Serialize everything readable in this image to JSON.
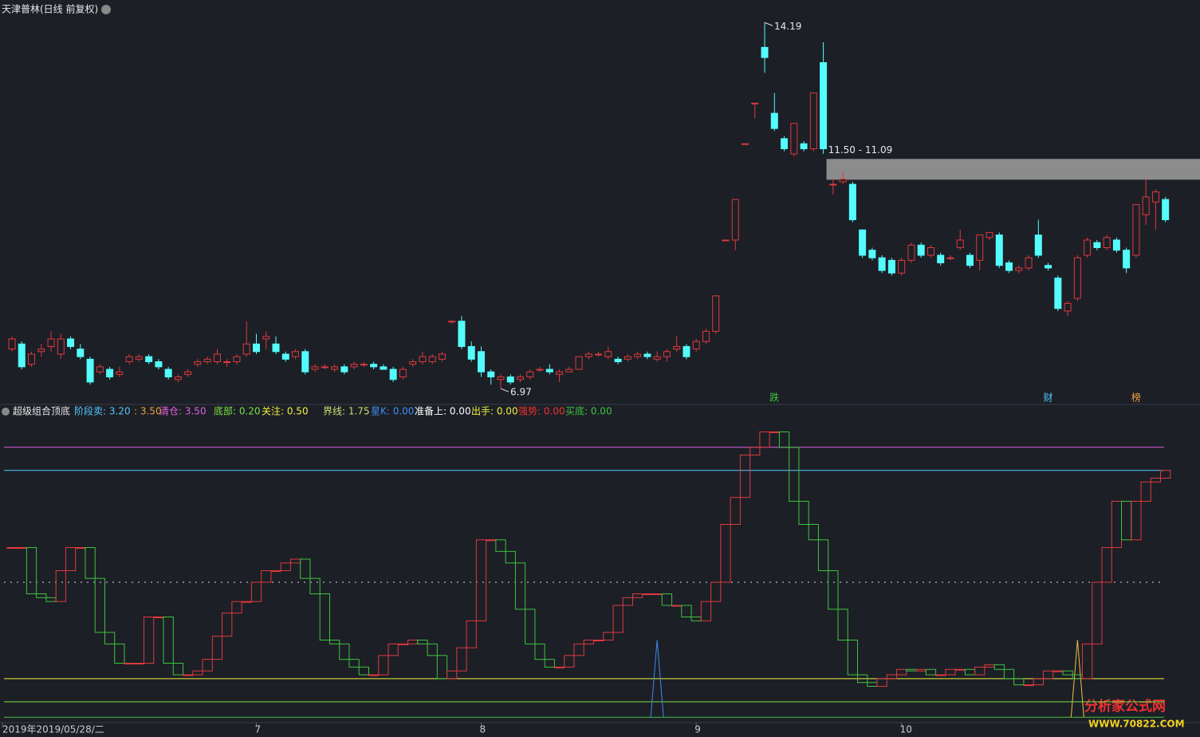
{
  "chart_data": [
    {
      "type": "candlestick",
      "title": "天津普林(日线 前复权)",
      "up_color": "#e0393e",
      "down_color": "#54fcfc",
      "ylim": [
        6.69,
        14.32
      ],
      "open": [
        7.75,
        7.85,
        7.45,
        7.7,
        7.8,
        7.65,
        7.95,
        7.75,
        7.55,
        7.3,
        7.35,
        7.25,
        7.5,
        7.55,
        7.6,
        7.5,
        7.35,
        7.15,
        7.25,
        7.45,
        7.5,
        7.5,
        7.5,
        7.5,
        7.65,
        7.85,
        7.95,
        7.85,
        7.65,
        7.6,
        7.7,
        7.35,
        7.4,
        7.35,
        7.4,
        7.4,
        7.45,
        7.45,
        7.4,
        7.35,
        7.2,
        7.45,
        7.5,
        7.5,
        7.55,
        8.3,
        8.3,
        7.8,
        7.7,
        7.3,
        7.15,
        7.2,
        7.15,
        7.2,
        7.35,
        7.35,
        7.25,
        7.3,
        7.35,
        7.6,
        7.65,
        7.6,
        7.55,
        7.55,
        7.6,
        7.65,
        7.55,
        7.6,
        7.75,
        7.8,
        7.75,
        7.9,
        8.1,
        9.9,
        9.9,
        11.8,
        12.6,
        13.7,
        12.4,
        11.9,
        11.6,
        11.8,
        11.7,
        13.4,
        11.0,
        11.05,
        11.0,
        10.1,
        9.7,
        9.55,
        9.5,
        9.25,
        9.5,
        9.8,
        9.6,
        9.6,
        9.55,
        9.75,
        9.6,
        9.5,
        9.95,
        10.0,
        9.45,
        9.3,
        9.35,
        10.0,
        9.4,
        9.15,
        8.5,
        8.75,
        9.6,
        9.85,
        9.75,
        9.9,
        9.7,
        9.6,
        10.4,
        10.65,
        10.7
      ],
      "high": [
        8.0,
        7.9,
        7.7,
        7.85,
        8.1,
        8.05,
        8.0,
        7.85,
        7.6,
        7.45,
        7.4,
        7.4,
        7.65,
        7.65,
        7.65,
        7.55,
        7.4,
        7.25,
        7.35,
        7.55,
        7.6,
        7.75,
        7.55,
        7.65,
        8.3,
        8.05,
        8.1,
        8.0,
        7.7,
        7.75,
        7.75,
        7.45,
        7.45,
        7.45,
        7.45,
        7.5,
        7.5,
        7.5,
        7.45,
        7.4,
        7.4,
        7.55,
        7.7,
        7.65,
        7.7,
        8.3,
        8.4,
        7.9,
        7.8,
        7.35,
        7.25,
        7.25,
        7.25,
        7.35,
        7.4,
        7.45,
        7.35,
        7.4,
        7.6,
        7.7,
        7.7,
        7.8,
        7.6,
        7.65,
        7.7,
        7.7,
        7.7,
        7.75,
        8.0,
        7.85,
        7.95,
        8.15,
        8.8,
        9.9,
        10.7,
        11.8,
        12.6,
        14.19,
        12.8,
        11.95,
        12.2,
        11.85,
        12.8,
        13.8,
        11.1,
        11.25,
        11.05,
        10.1,
        9.75,
        9.6,
        9.55,
        9.55,
        9.85,
        9.85,
        9.8,
        9.65,
        9.6,
        10.1,
        9.65,
        10.0,
        10.05,
        10.05,
        9.5,
        9.4,
        9.6,
        10.3,
        9.45,
        9.2,
        8.7,
        9.6,
        9.95,
        9.9,
        10.0,
        9.95,
        9.75,
        10.6,
        11.1,
        10.9,
        10.75
      ],
      "low": [
        7.7,
        7.35,
        7.4,
        7.6,
        7.7,
        7.55,
        7.75,
        7.55,
        7.05,
        7.25,
        7.15,
        7.2,
        7.45,
        7.5,
        7.45,
        7.35,
        7.15,
        7.1,
        7.2,
        7.4,
        7.45,
        7.45,
        7.4,
        7.45,
        7.6,
        7.65,
        7.75,
        7.65,
        7.5,
        7.55,
        7.25,
        7.3,
        7.35,
        7.3,
        7.25,
        7.35,
        7.4,
        7.35,
        7.35,
        7.1,
        7.15,
        7.4,
        7.45,
        7.45,
        7.5,
        8.25,
        7.75,
        7.5,
        7.2,
        7.05,
        6.97,
        7.05,
        7.1,
        7.15,
        7.3,
        7.25,
        7.1,
        7.3,
        7.35,
        7.55,
        7.6,
        7.55,
        7.45,
        7.5,
        7.55,
        7.55,
        7.5,
        7.5,
        7.7,
        7.55,
        7.7,
        7.85,
        8.05,
        9.9,
        9.7,
        11.8,
        12.3,
        13.2,
        12.05,
        11.65,
        11.55,
        11.65,
        11.65,
        11.6,
        10.8,
        11.0,
        10.25,
        9.55,
        9.5,
        9.25,
        9.2,
        9.2,
        9.45,
        9.55,
        9.55,
        9.4,
        9.5,
        9.7,
        9.35,
        9.3,
        9.9,
        9.35,
        9.25,
        9.25,
        9.3,
        9.55,
        9.3,
        8.5,
        8.4,
        8.7,
        9.55,
        9.7,
        9.7,
        9.65,
        9.25,
        9.55,
        10.2,
        10.1,
        10.25
      ],
      "close": [
        7.95,
        7.4,
        7.65,
        7.75,
        7.95,
        7.95,
        7.8,
        7.6,
        7.1,
        7.4,
        7.2,
        7.3,
        7.6,
        7.6,
        7.5,
        7.4,
        7.2,
        7.2,
        7.3,
        7.5,
        7.55,
        7.65,
        7.5,
        7.6,
        7.85,
        7.7,
        8.0,
        7.7,
        7.55,
        7.7,
        7.3,
        7.4,
        7.4,
        7.4,
        7.3,
        7.45,
        7.45,
        7.4,
        7.35,
        7.15,
        7.35,
        7.5,
        7.6,
        7.6,
        7.65,
        8.3,
        7.8,
        7.55,
        7.3,
        7.2,
        7.2,
        7.1,
        7.2,
        7.3,
        7.35,
        7.3,
        7.3,
        7.35,
        7.6,
        7.65,
        7.65,
        7.7,
        7.5,
        7.6,
        7.65,
        7.6,
        7.6,
        7.7,
        7.8,
        7.6,
        7.9,
        8.1,
        8.8,
        9.9,
        10.7,
        11.8,
        12.6,
        13.5,
        12.1,
        11.7,
        12.2,
        11.7,
        12.8,
        11.7,
        11.0,
        11.1,
        10.3,
        9.6,
        9.55,
        9.3,
        9.25,
        9.5,
        9.8,
        9.6,
        9.75,
        9.45,
        9.55,
        9.9,
        9.4,
        10.0,
        10.05,
        9.4,
        9.3,
        9.35,
        9.55,
        9.6,
        9.35,
        8.55,
        8.65,
        9.55,
        9.9,
        9.75,
        9.95,
        9.7,
        9.35,
        10.6,
        10.75,
        10.85,
        10.3
      ],
      "annotations": [
        {
          "label": "14.19",
          "index": 77,
          "value": 14.19
        },
        {
          "label": "6.97",
          "index": 50,
          "value": 6.97
        }
      ],
      "zone": {
        "label": "11.50 - 11.09",
        "high": 11.5,
        "low": 11.09,
        "start": 83
      },
      "markers": [
        {
          "label": "跌",
          "index": 78,
          "color": "#3ec43e"
        },
        {
          "label": "财",
          "index": 106,
          "color": "#54c8fc"
        },
        {
          "label": "榜",
          "index": 115,
          "color": "#f0a040"
        }
      ],
      "xticks": [
        {
          "value": 0,
          "label": "2019年2019/05/28/二"
        },
        {
          "value": 25,
          "label": "7"
        },
        {
          "value": 48,
          "label": "8"
        },
        {
          "value": 70,
          "label": "9"
        },
        {
          "value": 91,
          "label": "10"
        }
      ]
    },
    {
      "type": "step",
      "title": "超级组合顶底",
      "ylim": [
        -0.06,
        3.87
      ],
      "up_color": "#e0393e",
      "down_color": "#3ec43e",
      "levels": [
        {
          "label": "阶段卖: 3.20",
          "value": 3.2,
          "color": "#54c8fc",
          "line": "solid"
        },
        {
          "label": ": 3.50",
          "value": 3.5,
          "color": "#f0a040"
        },
        {
          "label": "清仓: 3.50",
          "value": 3.5,
          "color": "#e060e0",
          "line": "solid"
        },
        {
          "label": "底部: 0.20",
          "value": 0.2,
          "color": "#7ce040",
          "line": "solid"
        },
        {
          "label": "关注: 0.50",
          "value": 0.5,
          "color": "#f0f040",
          "line": "solid"
        },
        {
          "label": "界线: 1.75",
          "value": 1.75,
          "color": "#c8e070",
          "line": "dotted"
        },
        {
          "label": "星K: 0.00",
          "value": 0,
          "color": "#3c8cf0"
        },
        {
          "label": "准备上: 0.00",
          "value": 0,
          "color": "#ffffff"
        },
        {
          "label": "出手: 0.00",
          "value": 0,
          "color": "#f0f040"
        },
        {
          "label": "强势: 0.00",
          "value": 0,
          "color": "#f03030"
        },
        {
          "label": "买底: 0.00",
          "value": 0,
          "color": "#3ec43e",
          "line": "solid"
        }
      ],
      "values": [
        2.2,
        2.2,
        1.6,
        1.55,
        1.5,
        1.9,
        2.2,
        2.2,
        1.8,
        1.1,
        0.95,
        0.7,
        0.7,
        0.7,
        1.3,
        1.3,
        0.7,
        0.55,
        0.55,
        0.6,
        0.75,
        1.05,
        1.35,
        1.5,
        1.5,
        1.75,
        1.9,
        1.9,
        2.0,
        2.05,
        1.8,
        1.6,
        1.0,
        0.95,
        0.75,
        0.65,
        0.55,
        0.55,
        0.8,
        0.95,
        0.95,
        1.0,
        0.95,
        0.8,
        0.5,
        0.6,
        0.9,
        1.25,
        2.3,
        2.3,
        2.15,
        2.0,
        1.4,
        0.95,
        0.75,
        0.65,
        0.65,
        0.8,
        0.95,
        1.0,
        1.0,
        1.1,
        1.45,
        1.55,
        1.6,
        1.6,
        1.6,
        1.45,
        1.45,
        1.3,
        1.25,
        1.5,
        1.75,
        2.5,
        2.85,
        3.4,
        3.5,
        3.7,
        3.7,
        3.5,
        2.8,
        2.5,
        2.3,
        1.9,
        1.4,
        1.0,
        0.55,
        0.45,
        0.4,
        0.5,
        0.55,
        0.62,
        0.6,
        0.62,
        0.55,
        0.55,
        0.62,
        0.62,
        0.55,
        0.65,
        0.68,
        0.62,
        0.5,
        0.42,
        0.42,
        0.5,
        0.6,
        0.6,
        0.55,
        0.5,
        0.95,
        1.75,
        2.2,
        2.8,
        2.3,
        2.8,
        3.05,
        3.1,
        3.2
      ],
      "spikes": [
        {
          "index": 66,
          "value": 1.0,
          "color": "#3c8cf0"
        },
        {
          "index": 109,
          "value": 1.0,
          "color": "#f0c040"
        }
      ]
    }
  ],
  "watermark": {
    "name": "分析家公式网",
    "url": "WWW.70822.COM"
  }
}
